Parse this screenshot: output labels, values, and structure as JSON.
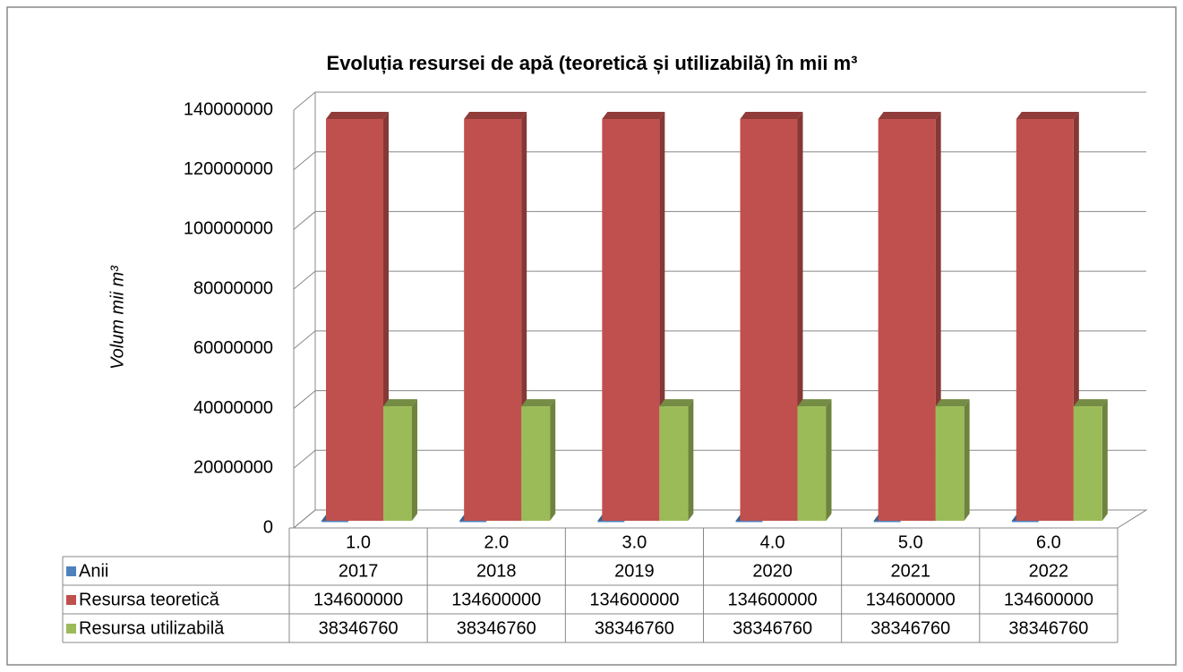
{
  "chart_data": {
    "type": "bar3d",
    "title": "Evoluția resursei de apă (teoretică și utilizabilă) în mii m³",
    "y_label": "Volum mii m³",
    "categories": [
      "1.0",
      "2.0",
      "3.0",
      "4.0",
      "5.0",
      "6.0"
    ],
    "series": [
      {
        "name": "Anii",
        "color": "#4f81bd",
        "values": [
          2017,
          2018,
          2019,
          2020,
          2021,
          2022
        ]
      },
      {
        "name": "Resursa teoretică",
        "color": "#c0504d",
        "values": [
          134600000,
          134600000,
          134600000,
          134600000,
          134600000,
          134600000
        ]
      },
      {
        "name": "Resursa utilizabilă",
        "color": "#9bbb59",
        "values": [
          38346760,
          38346760,
          38346760,
          38346760,
          38346760,
          38346760
        ]
      }
    ],
    "ylim": [
      0,
      140000000
    ],
    "yticks": [
      0,
      20000000,
      40000000,
      60000000,
      80000000,
      100000000,
      120000000,
      140000000
    ],
    "grid": true,
    "data_table": true
  }
}
